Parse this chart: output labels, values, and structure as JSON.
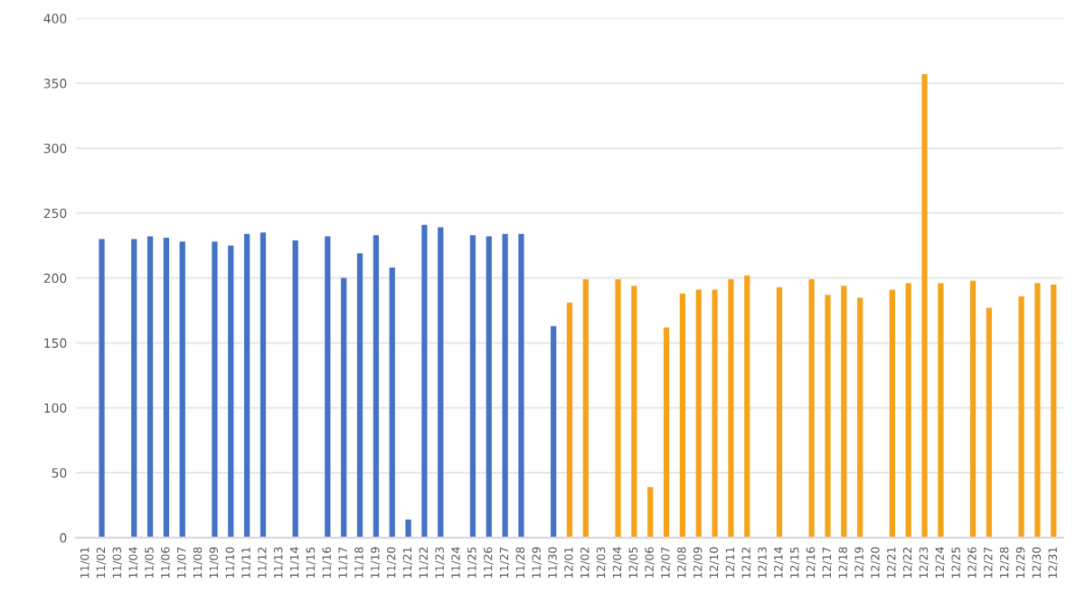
{
  "chart_data": {
    "type": "bar",
    "categories": [
      "11/01",
      "11/02",
      "11/03",
      "11/04",
      "11/05",
      "11/06",
      "11/07",
      "11/08",
      "11/09",
      "11/10",
      "11/11",
      "11/12",
      "11/13",
      "11/14",
      "11/15",
      "11/16",
      "11/17",
      "11/18",
      "11/19",
      "11/20",
      "11/21",
      "11/22",
      "11/23",
      "11/24",
      "11/25",
      "11/26",
      "11/27",
      "11/28",
      "11/29",
      "11/30",
      "12/01",
      "12/02",
      "12/03",
      "12/04",
      "12/05",
      "12/06",
      "12/07",
      "12/08",
      "12/09",
      "12/10",
      "12/11",
      "12/12",
      "12/13",
      "12/14",
      "12/15",
      "12/16",
      "12/17",
      "12/18",
      "12/19",
      "12/20",
      "12/21",
      "12/22",
      "12/23",
      "12/24",
      "12/25",
      "12/26",
      "12/27",
      "12/28",
      "12/29",
      "12/30",
      "12/31"
    ],
    "values": [
      null,
      230,
      null,
      230,
      232,
      231,
      228,
      null,
      228,
      225,
      234,
      235,
      null,
      229,
      null,
      232,
      200,
      219,
      233,
      208,
      14,
      241,
      239,
      null,
      233,
      232,
      234,
      234,
      null,
      163,
      181,
      199,
      null,
      199,
      194,
      39,
      162,
      188,
      191,
      191,
      199,
      202,
      null,
      193,
      null,
      199,
      187,
      194,
      185,
      null,
      191,
      196,
      357,
      196,
      null,
      198,
      177,
      null,
      186,
      196,
      195
    ],
    "colors": [
      "#4472c4",
      "#4472c4",
      "#4472c4",
      "#4472c4",
      "#4472c4",
      "#4472c4",
      "#4472c4",
      "#4472c4",
      "#4472c4",
      "#4472c4",
      "#4472c4",
      "#4472c4",
      "#4472c4",
      "#4472c4",
      "#4472c4",
      "#4472c4",
      "#4472c4",
      "#4472c4",
      "#4472c4",
      "#4472c4",
      "#4472c4",
      "#4472c4",
      "#4472c4",
      "#4472c4",
      "#4472c4",
      "#4472c4",
      "#4472c4",
      "#4472c4",
      "#4472c4",
      "#4472c4",
      "#f5a31a",
      "#f5a31a",
      "#f5a31a",
      "#f5a31a",
      "#f5a31a",
      "#f5a31a",
      "#f5a31a",
      "#f5a31a",
      "#f5a31a",
      "#f5a31a",
      "#f5a31a",
      "#f5a31a",
      "#f5a31a",
      "#f5a31a",
      "#f5a31a",
      "#f5a31a",
      "#f5a31a",
      "#f5a31a",
      "#f5a31a",
      "#f5a31a",
      "#f5a31a",
      "#f5a31a",
      "#f5a31a",
      "#f5a31a",
      "#f5a31a",
      "#f5a31a",
      "#f5a31a",
      "#f5a31a",
      "#f5a31a",
      "#f5a31a",
      "#f5a31a"
    ],
    "ylim": [
      0,
      400
    ],
    "yticks": [
      0,
      50,
      100,
      150,
      200,
      250,
      300,
      350,
      400
    ],
    "grid": "y",
    "legend": false
  }
}
